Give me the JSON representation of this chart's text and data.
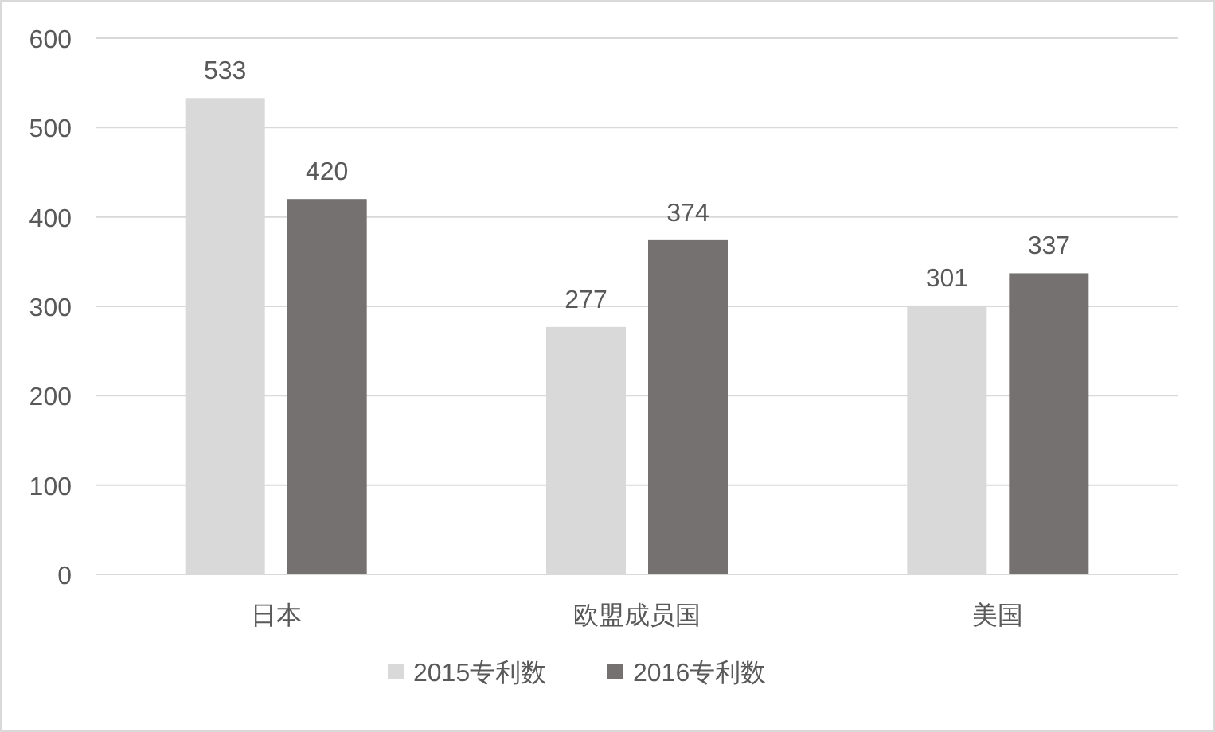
{
  "chart_data": {
    "type": "bar",
    "categories": [
      "日本",
      "欧盟成员国",
      "美国"
    ],
    "series": [
      {
        "name": "2015专利数",
        "color": "#d9d9d9",
        "values": [
          533,
          277,
          301
        ]
      },
      {
        "name": "2016专利数",
        "color": "#767171",
        "values": [
          420,
          374,
          337
        ]
      }
    ],
    "ylim": [
      0,
      600
    ],
    "yticks": [
      0,
      100,
      200,
      300,
      400,
      500,
      600
    ],
    "grid": "y",
    "legend": "bottom",
    "data_labels": true
  }
}
